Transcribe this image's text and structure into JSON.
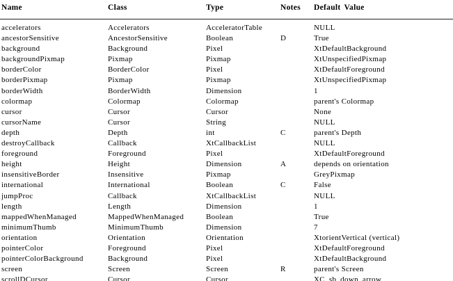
{
  "table": {
    "columns": [
      "Name",
      "Class",
      "Type",
      "Notes",
      "Default Value"
    ],
    "rows": [
      {
        "name": "accelerators",
        "class": "Accelerators",
        "type": "AcceleratorTable",
        "notes": "",
        "default": "NULL"
      },
      {
        "name": "ancestorSensitive",
        "class": "AncestorSensitive",
        "type": "Boolean",
        "notes": "D",
        "default": "True"
      },
      {
        "name": "background",
        "class": "Background",
        "type": "Pixel",
        "notes": "",
        "default": "XtDefaultBackground"
      },
      {
        "name": "backgroundPixmap",
        "class": "Pixmap",
        "type": "Pixmap",
        "notes": "",
        "default": "XtUnspecifiedPixmap"
      },
      {
        "name": "borderColor",
        "class": "BorderColor",
        "type": "Pixel",
        "notes": "",
        "default": "XtDefaultForeground"
      },
      {
        "name": "borderPixmap",
        "class": "Pixmap",
        "type": "Pixmap",
        "notes": "",
        "default": "XtUnspecifiedPixmap"
      },
      {
        "name": "borderWidth",
        "class": "BorderWidth",
        "type": "Dimension",
        "notes": "",
        "default": "1"
      },
      {
        "name": "colormap",
        "class": "Colormap",
        "type": "Colormap",
        "notes": "",
        "default": "parent's Colormap"
      },
      {
        "name": "cursor",
        "class": "Cursor",
        "type": "Cursor",
        "notes": "",
        "default": "None"
      },
      {
        "name": "cursorName",
        "class": "Cursor",
        "type": "String",
        "notes": "",
        "default": "NULL"
      },
      {
        "name": "depth",
        "class": "Depth",
        "type": "int",
        "notes": "C",
        "default": "parent's Depth"
      },
      {
        "name": "destroyCallback",
        "class": "Callback",
        "type": "XtCallbackList",
        "notes": "",
        "default": "NULL"
      },
      {
        "name": "foreground",
        "class": "Foreground",
        "type": "Pixel",
        "notes": "",
        "default": "XtDefaultForeground"
      },
      {
        "name": "height",
        "class": "Height",
        "type": "Dimension",
        "notes": "A",
        "default": "depends on orientation"
      },
      {
        "name": "insensitiveBorder",
        "class": "Insensitive",
        "type": "Pixmap",
        "notes": "",
        "default": "GreyPixmap"
      },
      {
        "name": "international",
        "class": "International",
        "type": "Boolean",
        "notes": "C",
        "default": "False"
      },
      {
        "name": "jumpProc",
        "class": "Callback",
        "type": "XtCallbackList",
        "notes": "",
        "default": "NULL"
      },
      {
        "name": "length",
        "class": "Length",
        "type": "Dimension",
        "notes": "",
        "default": "1"
      },
      {
        "name": "mappedWhenManaged",
        "class": "MappedWhenManaged",
        "type": "Boolean",
        "notes": "",
        "default": "True"
      },
      {
        "name": "minimumThumb",
        "class": "MinimumThumb",
        "type": "Dimension",
        "notes": "",
        "default": "7"
      },
      {
        "name": "orientation",
        "class": "Orientation",
        "type": "Orientation",
        "notes": "",
        "default": "XtorientVertical (vertical)"
      },
      {
        "name": "pointerColor",
        "class": "Foreground",
        "type": "Pixel",
        "notes": "",
        "default": "XtDefaultForeground"
      },
      {
        "name": "pointerColorBackground",
        "class": "Background",
        "type": "Pixel",
        "notes": "",
        "default": "XtDefaultBackground"
      },
      {
        "name": "screen",
        "class": "Screen",
        "type": "Screen",
        "notes": "R",
        "default": "parent's Screen"
      },
      {
        "name": "scrollDCursor",
        "class": "Cursor",
        "type": "Cursor",
        "notes": "",
        "default": "XC_sb_down_arrow"
      }
    ]
  }
}
